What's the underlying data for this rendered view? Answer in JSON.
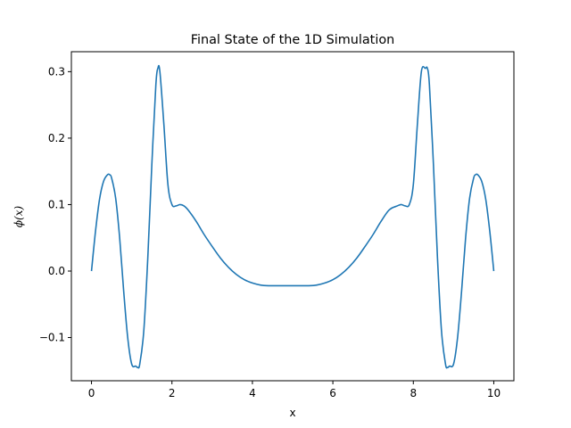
{
  "chart_data": {
    "type": "line",
    "title": "Final State of the 1D Simulation",
    "xlabel": "x",
    "ylabel": "ϕ(x)",
    "xlim": [
      -0.5,
      10.5
    ],
    "ylim": [
      -0.165,
      0.33
    ],
    "xticks": [
      0,
      2,
      4,
      6,
      8,
      10
    ],
    "xtick_labels": [
      "0",
      "2",
      "4",
      "6",
      "8",
      "10"
    ],
    "yticks": [
      -0.1,
      0.0,
      0.1,
      0.2,
      0.3
    ],
    "ytick_labels": [
      "−0.1",
      "0.0",
      "0.1",
      "0.2",
      "0.3"
    ],
    "grid": false,
    "legend": "none",
    "series": [
      {
        "color": "#1f77b4",
        "x": [
          0,
          0.1,
          0.2,
          0.3,
          0.4,
          0.45,
          0.5,
          0.6,
          0.7,
          0.8,
          0.9,
          1.0,
          1.1,
          1.15,
          1.2,
          1.3,
          1.4,
          1.5,
          1.6,
          1.65,
          1.7,
          1.8,
          1.9,
          2.0,
          2.1,
          2.2,
          2.3,
          2.4,
          2.6,
          2.8,
          3.0,
          3.2,
          3.4,
          3.6,
          3.8,
          4.0,
          4.2,
          4.4,
          4.6,
          4.8,
          5.0,
          5.2,
          5.4,
          5.6,
          5.8,
          6.0,
          6.2,
          6.4,
          6.6,
          6.8,
          7.0,
          7.2,
          7.4,
          7.6,
          7.7,
          7.8,
          7.9,
          8.0,
          8.1,
          8.2,
          8.3,
          8.35,
          8.4,
          8.5,
          8.6,
          8.7,
          8.8,
          8.85,
          8.9,
          9.0,
          9.1,
          9.2,
          9.3,
          9.4,
          9.5,
          9.55,
          9.6,
          9.7,
          9.8,
          9.9,
          10.0
        ],
        "y": [
          0.0,
          0.06,
          0.108,
          0.135,
          0.145,
          0.145,
          0.14,
          0.11,
          0.05,
          -0.03,
          -0.1,
          -0.14,
          -0.143,
          -0.145,
          -0.14,
          -0.09,
          0.02,
          0.16,
          0.28,
          0.305,
          0.3,
          0.22,
          0.13,
          0.1,
          0.098,
          0.1,
          0.098,
          0.092,
          0.075,
          0.055,
          0.037,
          0.02,
          0.006,
          -0.005,
          -0.013,
          -0.018,
          -0.021,
          -0.022,
          -0.022,
          -0.022,
          -0.022,
          -0.022,
          -0.022,
          -0.021,
          -0.018,
          -0.013,
          -0.005,
          0.006,
          0.02,
          0.037,
          0.055,
          0.075,
          0.092,
          0.098,
          0.1,
          0.098,
          0.1,
          0.13,
          0.22,
          0.3,
          0.305,
          0.305,
          0.28,
          0.16,
          0.02,
          -0.09,
          -0.14,
          -0.145,
          -0.143,
          -0.14,
          -0.1,
          -0.03,
          0.05,
          0.11,
          0.14,
          0.145,
          0.145,
          0.135,
          0.108,
          0.06,
          0.0
        ]
      }
    ]
  }
}
